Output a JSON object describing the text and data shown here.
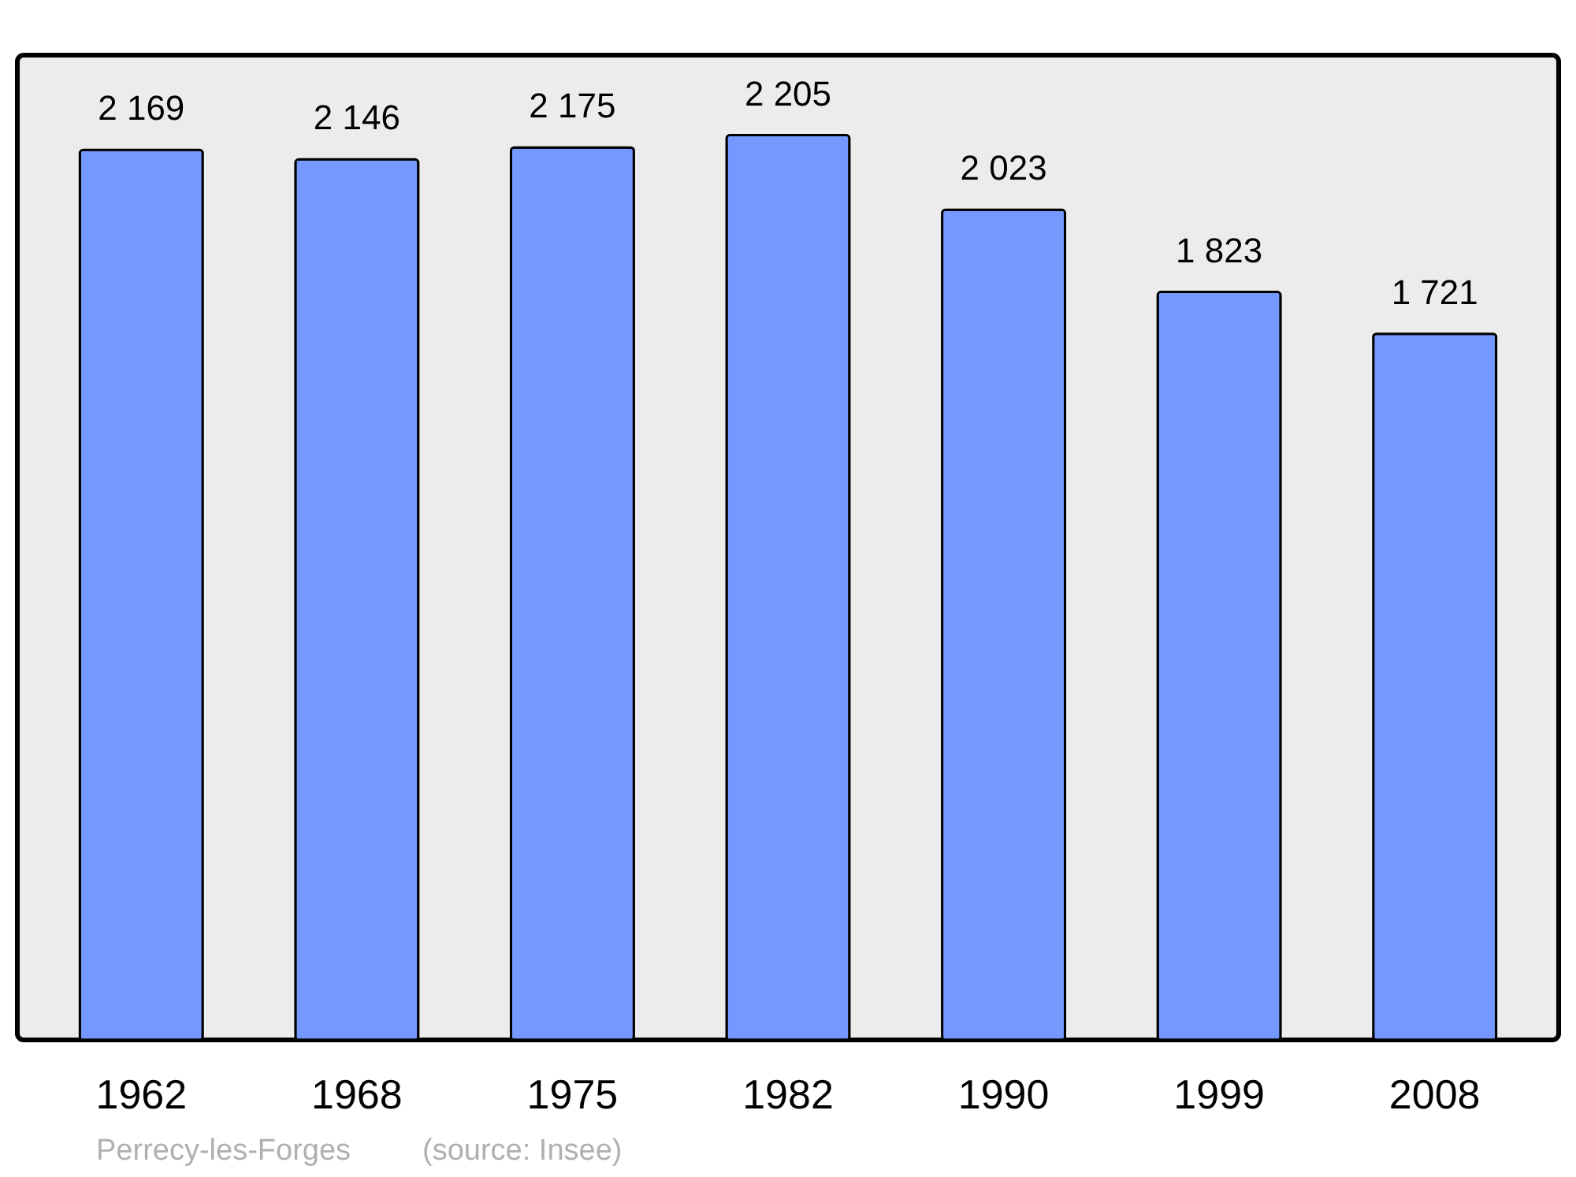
{
  "chart_data": {
    "type": "bar",
    "categories": [
      "1962",
      "1968",
      "1975",
      "1982",
      "1990",
      "1999",
      "2008"
    ],
    "values": [
      2169,
      2146,
      2175,
      2205,
      2023,
      1823,
      1721
    ],
    "value_labels": [
      "2 169",
      "2 146",
      "2 175",
      "2 205",
      "2 023",
      "1 823",
      "1 721"
    ],
    "color": "#7399ff",
    "grid": false,
    "annotations": [
      "Perrecy-les-Forges",
      "(source: Insee)"
    ]
  }
}
